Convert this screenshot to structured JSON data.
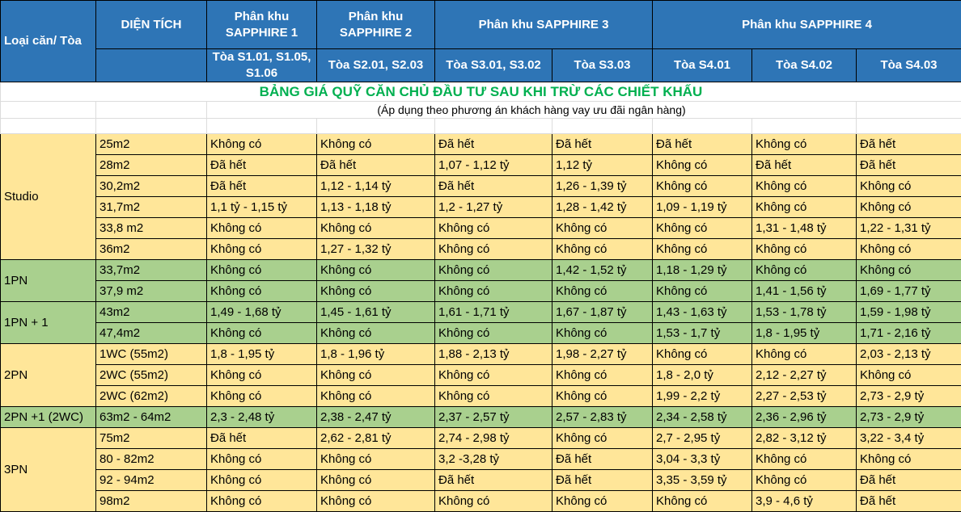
{
  "title": "BẢNG GIÁ QUỸ CĂN CHỦ ĐẦU TƯ SAU KHI TRỪ CÁC CHIẾT KHẤU",
  "subtitle": "(Áp dụng theo phương án khách hàng vay ưu đãi ngân hàng)",
  "colors": {
    "header": "#2e75b6",
    "yellow": "#ffe699",
    "green": "#a9d08e",
    "title": "#00b050"
  },
  "header": {
    "type_col": "Loại căn/ Tòa",
    "area_col": "DIỆN TÍCH",
    "zones": [
      "Phân khu SAPPHIRE 1",
      "Phân khu SAPPHIRE 2",
      "Phân khu SAPPHIRE 3",
      "Phân khu SAPPHIRE 4"
    ],
    "towers": [
      "Tòa S1.01, S1.05, S1.06",
      "Tòa S2.01, S2.03",
      "Tòa S3.01, S3.02",
      "Tòa S3.03",
      "Tòa S4.01",
      "Tòa S4.02",
      "Tòa S4.03"
    ]
  },
  "groups": [
    {
      "name": "Studio",
      "color": "yellow",
      "rows": [
        {
          "area": "25m2",
          "values": [
            "Không có",
            "Không có",
            "Đã hết",
            "Đã hết",
            "Đã hết",
            "Không có",
            "Đã hết"
          ]
        },
        {
          "area": "28m2",
          "values": [
            "Đã hết",
            "Đã hết",
            "1,07 - 1,12 tỷ",
            "1,12 tỷ",
            "Không có",
            "Đã hết",
            "Đã hết"
          ]
        },
        {
          "area": "30,2m2",
          "values": [
            "Đã hết",
            "1,12 - 1,14 tỷ",
            "Đã hết",
            "1,26 - 1,39 tỷ",
            "Không có",
            "Không có",
            "Không có"
          ]
        },
        {
          "area": "31,7m2",
          "values": [
            "1,1 tỷ - 1,15 tỷ",
            "1,13 - 1,18 tỷ",
            "1,2 - 1,27 tỷ",
            "1,28 - 1,42 tỷ",
            "1,09 - 1,19 tỷ",
            "Không có",
            "Không có"
          ]
        },
        {
          "area": "33,8 m2",
          "values": [
            "Không có",
            "Không có",
            "Không có",
            "Không có",
            "Không có",
            "1,31 - 1,48 tỷ",
            "1,22 - 1,31 tỷ"
          ]
        },
        {
          "area": "36m2",
          "values": [
            "Không có",
            "1,27 - 1,32 tỷ",
            "Không có",
            "Không có",
            "Không có",
            "Không có",
            "Không có"
          ]
        }
      ]
    },
    {
      "name": "1PN",
      "color": "green",
      "rows": [
        {
          "area": "33,7m2",
          "values": [
            "Không có",
            "Không có",
            "Không có",
            "1,42 - 1,52 tỷ",
            "1,18 - 1,29 tỷ",
            "Không có",
            "Không có"
          ]
        },
        {
          "area": "37,9 m2",
          "values": [
            "Không có",
            "Không có",
            "Không có",
            "Không có",
            "Không có",
            "1,41 - 1,56 tỷ",
            "1,69 - 1,77 tỷ"
          ]
        }
      ]
    },
    {
      "name": "1PN + 1",
      "color": "green",
      "rows": [
        {
          "area": "43m2",
          "values": [
            "1,49 - 1,68 tỷ",
            "1,45 - 1,61 tỷ",
            "1,61 - 1,71 tỷ",
            "1,67 - 1,87 tỷ",
            "1,43 - 1,63 tỷ",
            "1,53 - 1,78 tỷ",
            "1,59 - 1,98 tỷ"
          ]
        },
        {
          "area": "47,4m2",
          "values": [
            "Không có",
            "Không có",
            "Không có",
            "Không có",
            "1,53 - 1,7 tỷ",
            "1,8 - 1,95 tỷ",
            "1,71 - 2,16 tỷ"
          ]
        }
      ]
    },
    {
      "name": "2PN",
      "color": "yellow",
      "rows": [
        {
          "area": "1WC (55m2)",
          "values": [
            "1,8 - 1,95 tỷ",
            "1,8 - 1,96 tỷ",
            "1,88 - 2,13 tỷ",
            "1,98 - 2,27 tỷ",
            "Không có",
            "Không có",
            "2,03 - 2,13 tỷ"
          ]
        },
        {
          "area": "2WC (55m2)",
          "values": [
            "Không có",
            "Không có",
            "Không có",
            "Không có",
            "1,8 - 2,0 tỷ",
            "2,12 - 2,27 tỷ",
            "Không có"
          ]
        },
        {
          "area": "2WC (62m2)",
          "values": [
            "Không có",
            "Không có",
            "Không có",
            "Không có",
            "1,99 - 2,2 tỷ",
            "2,27 - 2,53 tỷ",
            "2,73 - 2,9 tỷ"
          ]
        }
      ]
    },
    {
      "name": "2PN +1 (2WC)",
      "color": "green",
      "rows": [
        {
          "area": "63m2 - 64m2",
          "values": [
            "2,3 - 2,48 tỷ",
            "2,38 - 2,47 tỷ",
            "2,37 - 2,57 tỷ",
            "2,57 - 2,83 tỷ",
            "2,34 - 2,58 tỷ",
            "2,36 - 2,96 tỷ",
            "2,73 - 2,9 tỷ"
          ]
        }
      ]
    },
    {
      "name": "3PN",
      "color": "yellow",
      "rows": [
        {
          "area": "75m2",
          "values": [
            "Đã hết",
            "2,62 - 2,81 tỷ",
            "2,74 - 2,98 tỷ",
            "Không có",
            "2,7 - 2,95 tỷ",
            "2,82 - 3,12 tỷ",
            "3,22 - 3,4 tỷ"
          ]
        },
        {
          "area": "80 - 82m2",
          "values": [
            "Không có",
            "Không có",
            "3,2 -3,28 tỷ",
            "Đã hết",
            "3,04 - 3,3 tỷ",
            "Không có",
            "Không có"
          ]
        },
        {
          "area": "92 - 94m2",
          "values": [
            "Không có",
            "Không có",
            "Đã hết",
            "Đã hết",
            "3,35 - 3,59 tỷ",
            "Không có",
            "Đã hết"
          ]
        },
        {
          "area": "98m2",
          "values": [
            "Không có",
            "Không có",
            "Không có",
            "Không có",
            "Không có",
            "3,9 - 4,6 tỷ",
            "Đã hết"
          ]
        }
      ]
    }
  ]
}
